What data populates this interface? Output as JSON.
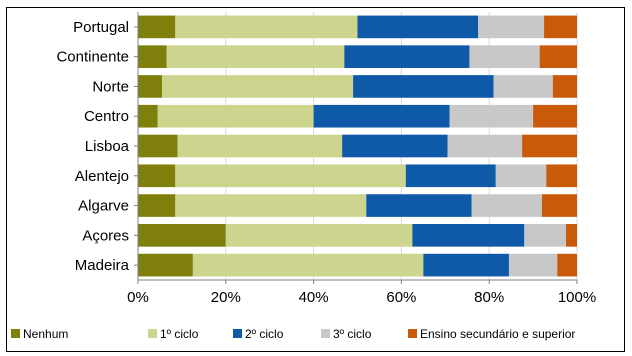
{
  "chart_data": {
    "type": "bar",
    "orientation": "horizontal",
    "stacked": true,
    "percent_stacked": true,
    "categories": [
      "Portugal",
      "Continente",
      "Norte",
      "Centro",
      "Lisboa",
      "Alentejo",
      "Algarve",
      "Açores",
      "Madeira"
    ],
    "series": [
      {
        "name": "Nenhum",
        "color": "#7f7f0b",
        "values": [
          8.5,
          6.5,
          5.5,
          4.5,
          9.0,
          8.5,
          8.5,
          20.0,
          12.5
        ]
      },
      {
        "name": "1º ciclo",
        "color": "#cdd48e",
        "values": [
          41.5,
          40.5,
          43.5,
          35.5,
          37.5,
          52.5,
          43.5,
          42.5,
          52.5
        ]
      },
      {
        "name": "2º ciclo",
        "color": "#0e5aa8",
        "values": [
          27.5,
          28.5,
          32.0,
          31.0,
          24.0,
          20.5,
          24.0,
          25.5,
          19.5
        ]
      },
      {
        "name": "3º ciclo",
        "color": "#c8c8c8",
        "values": [
          15.0,
          16.0,
          13.5,
          19.0,
          17.0,
          11.5,
          16.0,
          9.5,
          11.0
        ]
      },
      {
        "name": "Ensino secundário e superior",
        "color": "#c85a0a",
        "values": [
          7.5,
          8.5,
          5.5,
          10.0,
          12.5,
          7.0,
          8.0,
          2.5,
          4.5
        ]
      }
    ],
    "x_ticks": [
      "0%",
      "20%",
      "40%",
      "60%",
      "80%",
      "100%"
    ],
    "xlim": [
      0,
      100
    ],
    "grid": "vertical",
    "legend_position": "bottom",
    "title": "",
    "xlabel": "",
    "ylabel": ""
  }
}
